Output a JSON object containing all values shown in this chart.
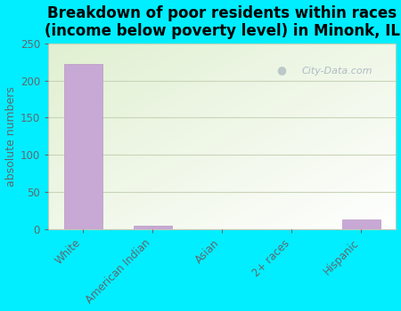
{
  "title": "Breakdown of poor residents within races\n(income below poverty level) in Minonk, IL",
  "ylabel": "absolute numbers",
  "categories": [
    "White",
    "American Indian",
    "Asian",
    "2+ races",
    "Hispanic"
  ],
  "values": [
    222,
    5,
    0,
    0,
    13
  ],
  "bar_color": "#c8a8d4",
  "bar_edge_color": "#b898c4",
  "ylim": [
    0,
    250
  ],
  "yticks": [
    0,
    50,
    100,
    150,
    200,
    250
  ],
  "background_outer": "#00eeff",
  "grid_color": "#c8d4b8",
  "title_fontsize": 12,
  "ylabel_fontsize": 9,
  "tick_fontsize": 8.5,
  "watermark_text": "City-Data.com",
  "watermark_color": "#a8b4c0",
  "label_color": "#606870"
}
